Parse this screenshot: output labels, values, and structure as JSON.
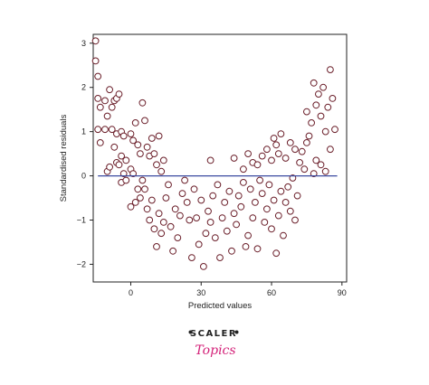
{
  "chart_data": {
    "type": "scatter",
    "xlabel": "Predicted values",
    "ylabel": "Standardised residuals",
    "xlim": [
      -16,
      92
    ],
    "ylim": [
      -2.4,
      3.2
    ],
    "xticks": [
      0,
      30,
      60,
      90
    ],
    "yticks": [
      -2,
      -1,
      0,
      1,
      2,
      3
    ],
    "reference_line": {
      "y": 0,
      "color": "#3b4aa0"
    },
    "marker": {
      "stroke": "#6b1f2a",
      "fill": "#ffffff"
    },
    "grid": false,
    "points": [
      [
        -15,
        3.05
      ],
      [
        -15,
        2.6
      ],
      [
        -14,
        2.25
      ],
      [
        -14,
        1.75
      ],
      [
        -13,
        1.55
      ],
      [
        -14,
        1.05
      ],
      [
        -13,
        0.75
      ],
      [
        -11,
        1.7
      ],
      [
        -10,
        1.35
      ],
      [
        -9,
        1.95
      ],
      [
        -8,
        1.55
      ],
      [
        -7,
        1.7
      ],
      [
        -6,
        1.75
      ],
      [
        -5,
        1.85
      ],
      [
        -11,
        1.05
      ],
      [
        -8,
        1.05
      ],
      [
        -7,
        0.65
      ],
      [
        -6,
        0.95
      ],
      [
        -4,
        1.0
      ],
      [
        -3,
        0.9
      ],
      [
        -10,
        0.1
      ],
      [
        -9,
        0.2
      ],
      [
        -6,
        0.3
      ],
      [
        -5,
        0.25
      ],
      [
        -3,
        0.05
      ],
      [
        -4,
        0.45
      ],
      [
        -2,
        0.35
      ],
      [
        -4,
        -0.15
      ],
      [
        -2,
        -0.1
      ],
      [
        0,
        0.95
      ],
      [
        1,
        0.8
      ],
      [
        2,
        1.2
      ],
      [
        3,
        0.7
      ],
      [
        4,
        0.5
      ],
      [
        5,
        1.65
      ],
      [
        6,
        1.25
      ],
      [
        7,
        0.65
      ],
      [
        8,
        0.45
      ],
      [
        9,
        0.85
      ],
      [
        0,
        0.15
      ],
      [
        1,
        0.05
      ],
      [
        0,
        -0.7
      ],
      [
        2,
        -0.6
      ],
      [
        3,
        -0.3
      ],
      [
        4,
        -0.5
      ],
      [
        5,
        -0.1
      ],
      [
        6,
        -0.3
      ],
      [
        7,
        -0.75
      ],
      [
        8,
        -1.0
      ],
      [
        9,
        -0.55
      ],
      [
        10,
        0.5
      ],
      [
        11,
        0.25
      ],
      [
        12,
        0.9
      ],
      [
        13,
        0.1
      ],
      [
        14,
        0.35
      ],
      [
        10,
        -1.2
      ],
      [
        11,
        -1.6
      ],
      [
        12,
        -0.85
      ],
      [
        13,
        -1.3
      ],
      [
        14,
        -1.05
      ],
      [
        15,
        -0.5
      ],
      [
        16,
        -0.2
      ],
      [
        17,
        -1.15
      ],
      [
        18,
        -1.7
      ],
      [
        19,
        -0.75
      ],
      [
        20,
        -1.4
      ],
      [
        21,
        -0.9
      ],
      [
        22,
        -0.4
      ],
      [
        23,
        -0.1
      ],
      [
        24,
        -0.6
      ],
      [
        25,
        -1.0
      ],
      [
        26,
        -1.85
      ],
      [
        27,
        -0.3
      ],
      [
        28,
        -0.95
      ],
      [
        29,
        -1.55
      ],
      [
        30,
        -0.55
      ],
      [
        31,
        -2.05
      ],
      [
        32,
        -1.3
      ],
      [
        33,
        -0.8
      ],
      [
        34,
        -1.05
      ],
      [
        35,
        -0.45
      ],
      [
        36,
        -1.4
      ],
      [
        37,
        -0.2
      ],
      [
        38,
        -1.85
      ],
      [
        39,
        -0.95
      ],
      [
        40,
        -0.6
      ],
      [
        41,
        -1.25
      ],
      [
        42,
        -0.35
      ],
      [
        43,
        -1.7
      ],
      [
        44,
        -0.85
      ],
      [
        45,
        -1.1
      ],
      [
        46,
        -0.45
      ],
      [
        47,
        -0.7
      ],
      [
        48,
        -0.15
      ],
      [
        49,
        -1.6
      ],
      [
        50,
        -1.35
      ],
      [
        51,
        -0.3
      ],
      [
        52,
        -0.95
      ],
      [
        53,
        -0.6
      ],
      [
        54,
        -1.65
      ],
      [
        55,
        -0.1
      ],
      [
        56,
        -0.4
      ],
      [
        57,
        -1.05
      ],
      [
        58,
        -0.75
      ],
      [
        59,
        -0.2
      ],
      [
        60,
        -1.2
      ],
      [
        61,
        -0.55
      ],
      [
        62,
        -1.75
      ],
      [
        63,
        -0.9
      ],
      [
        64,
        -0.35
      ],
      [
        65,
        -1.35
      ],
      [
        66,
        -0.6
      ],
      [
        67,
        -0.25
      ],
      [
        68,
        -0.8
      ],
      [
        69,
        -0.05
      ],
      [
        70,
        -1.0
      ],
      [
        71,
        -0.45
      ],
      [
        34,
        0.35
      ],
      [
        44,
        0.4
      ],
      [
        48,
        0.15
      ],
      [
        50,
        0.5
      ],
      [
        52,
        0.3
      ],
      [
        54,
        0.25
      ],
      [
        56,
        0.45
      ],
      [
        58,
        0.6
      ],
      [
        60,
        0.35
      ],
      [
        61,
        0.85
      ],
      [
        62,
        0.7
      ],
      [
        63,
        0.5
      ],
      [
        64,
        0.95
      ],
      [
        66,
        0.4
      ],
      [
        68,
        0.75
      ],
      [
        70,
        0.6
      ],
      [
        72,
        0.3
      ],
      [
        73,
        0.55
      ],
      [
        74,
        0.15
      ],
      [
        75,
        1.45
      ],
      [
        76,
        0.9
      ],
      [
        77,
        1.2
      ],
      [
        78,
        2.1
      ],
      [
        79,
        1.6
      ],
      [
        80,
        1.85
      ],
      [
        81,
        1.35
      ],
      [
        82,
        2.0
      ],
      [
        83,
        1.0
      ],
      [
        84,
        1.55
      ],
      [
        85,
        2.4
      ],
      [
        86,
        1.75
      ],
      [
        87,
        1.05
      ],
      [
        85,
        0.6
      ],
      [
        81,
        0.25
      ],
      [
        78,
        0.05
      ],
      [
        83,
        0.1
      ],
      [
        75,
        0.75
      ],
      [
        79,
        0.35
      ]
    ]
  },
  "logo": {
    "word": "SCALER",
    "sub": "Topics",
    "accent": "#d4237a"
  }
}
